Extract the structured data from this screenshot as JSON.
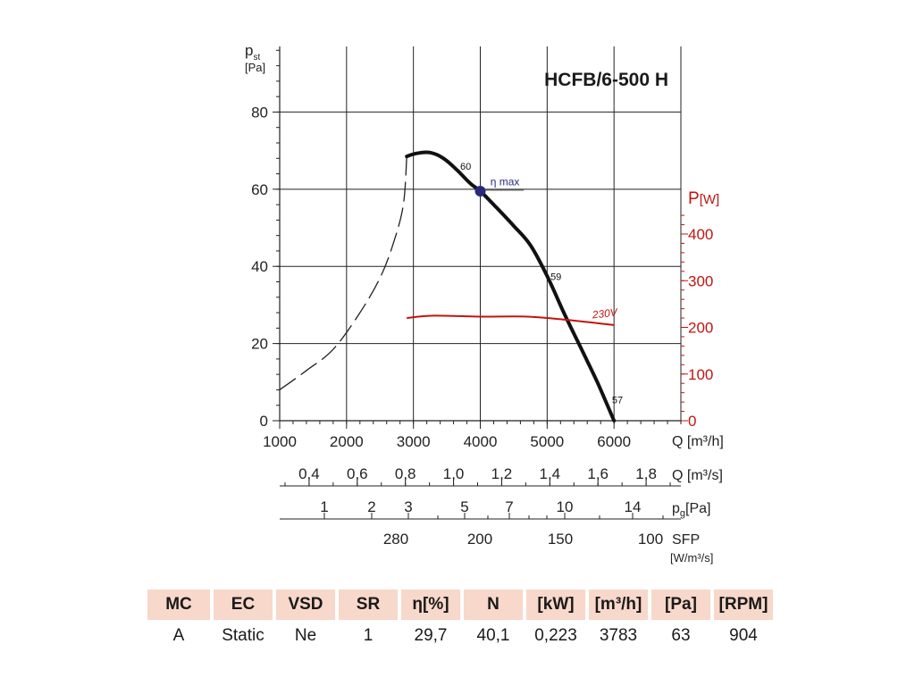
{
  "chart_data": {
    "type": "line",
    "title": "HCFB/6-500 H",
    "y_left": {
      "label_main": "p",
      "label_sub": "st",
      "unit": "[Pa]",
      "ticks": [
        0,
        20,
        40,
        60,
        80
      ],
      "range": [
        0,
        97
      ],
      "minor_step": 4
    },
    "y_right": {
      "label_main": "P",
      "unit": "[W]",
      "ticks": [
        0,
        100,
        200,
        300,
        400
      ],
      "color": "#c0150f"
    },
    "x": {
      "label": "Q [m³/h]",
      "ticks": [
        1000,
        2000,
        3000,
        4000,
        5000,
        6000
      ],
      "range": [
        1000,
        7000
      ]
    },
    "grid": true,
    "series": [
      {
        "name": "",
        "kind": "dashed",
        "color": "#222222",
        "points": [
          [
            1000,
            8
          ],
          [
            1400,
            13
          ],
          [
            1800,
            18.5
          ],
          [
            2200,
            28
          ],
          [
            2500,
            37
          ],
          [
            2700,
            46
          ],
          [
            2850,
            56
          ],
          [
            2900,
            68.5
          ]
        ]
      },
      {
        "name": "",
        "kind": "solid",
        "color": "#111111",
        "points": [
          [
            2900,
            68.5
          ],
          [
            3050,
            69.3
          ],
          [
            3250,
            69.5
          ],
          [
            3450,
            68
          ],
          [
            3650,
            65
          ],
          [
            3850,
            61.5
          ],
          [
            4000,
            59.5
          ],
          [
            4200,
            56
          ],
          [
            4500,
            50.5
          ],
          [
            4750,
            45.5
          ],
          [
            5000,
            37.5
          ],
          [
            5250,
            28
          ],
          [
            5500,
            19
          ],
          [
            5750,
            10
          ],
          [
            6000,
            0
          ]
        ]
      },
      {
        "name": "230V",
        "kind": "power",
        "color": "#c0150f",
        "points": [
          [
            2900,
            220
          ],
          [
            3300,
            225
          ],
          [
            4000,
            223
          ],
          [
            4700,
            223
          ],
          [
            5300,
            216
          ],
          [
            6000,
            205
          ]
        ]
      }
    ],
    "annotations": [
      {
        "text": "60",
        "x": 3700,
        "y": 65
      },
      {
        "text": "η max",
        "x": 4150,
        "y": 61
      },
      {
        "text": "59",
        "x": 5050,
        "y": 36.5
      },
      {
        "text": "57",
        "x": 5970,
        "y": 4.5
      },
      {
        "text": "230V",
        "x": 5680,
        "y": 26.5
      }
    ],
    "eta_max_point": {
      "x": 4000,
      "y": 59.5,
      "color": "#2a2a7a"
    },
    "secondary_scales": [
      {
        "name": "Q",
        "unit": "[m³/s]",
        "labels": [
          "0,4",
          "0,6",
          "0,8",
          "1,0",
          "1,2",
          "1,4",
          "1,6",
          "1,8"
        ],
        "values": [
          0.4,
          0.6,
          0.8,
          1.0,
          1.2,
          1.4,
          1.6,
          1.8
        ]
      },
      {
        "name": "p",
        "sub": "g",
        "unit": "[Pa]",
        "labels": [
          "1",
          "2",
          "3",
          "5",
          "7",
          "10",
          "14"
        ],
        "values": [
          1,
          2,
          3,
          5,
          7,
          10,
          14
        ]
      },
      {
        "name": "SFP",
        "unit": "[W/m³/s]",
        "labels": [
          "280",
          "200",
          "150",
          "100"
        ],
        "values": [
          280,
          200,
          150,
          100
        ]
      }
    ]
  },
  "spec_table": {
    "headers": [
      "MC",
      "EC",
      "VSD",
      "SR",
      "η[%]",
      "N",
      "[kW]",
      "[m³/h]",
      "[Pa]",
      "[RPM]"
    ],
    "values": [
      "A",
      "Static",
      "Ne",
      "1",
      "29,7",
      "40,1",
      "0,223",
      "3783",
      "63",
      "904"
    ]
  }
}
